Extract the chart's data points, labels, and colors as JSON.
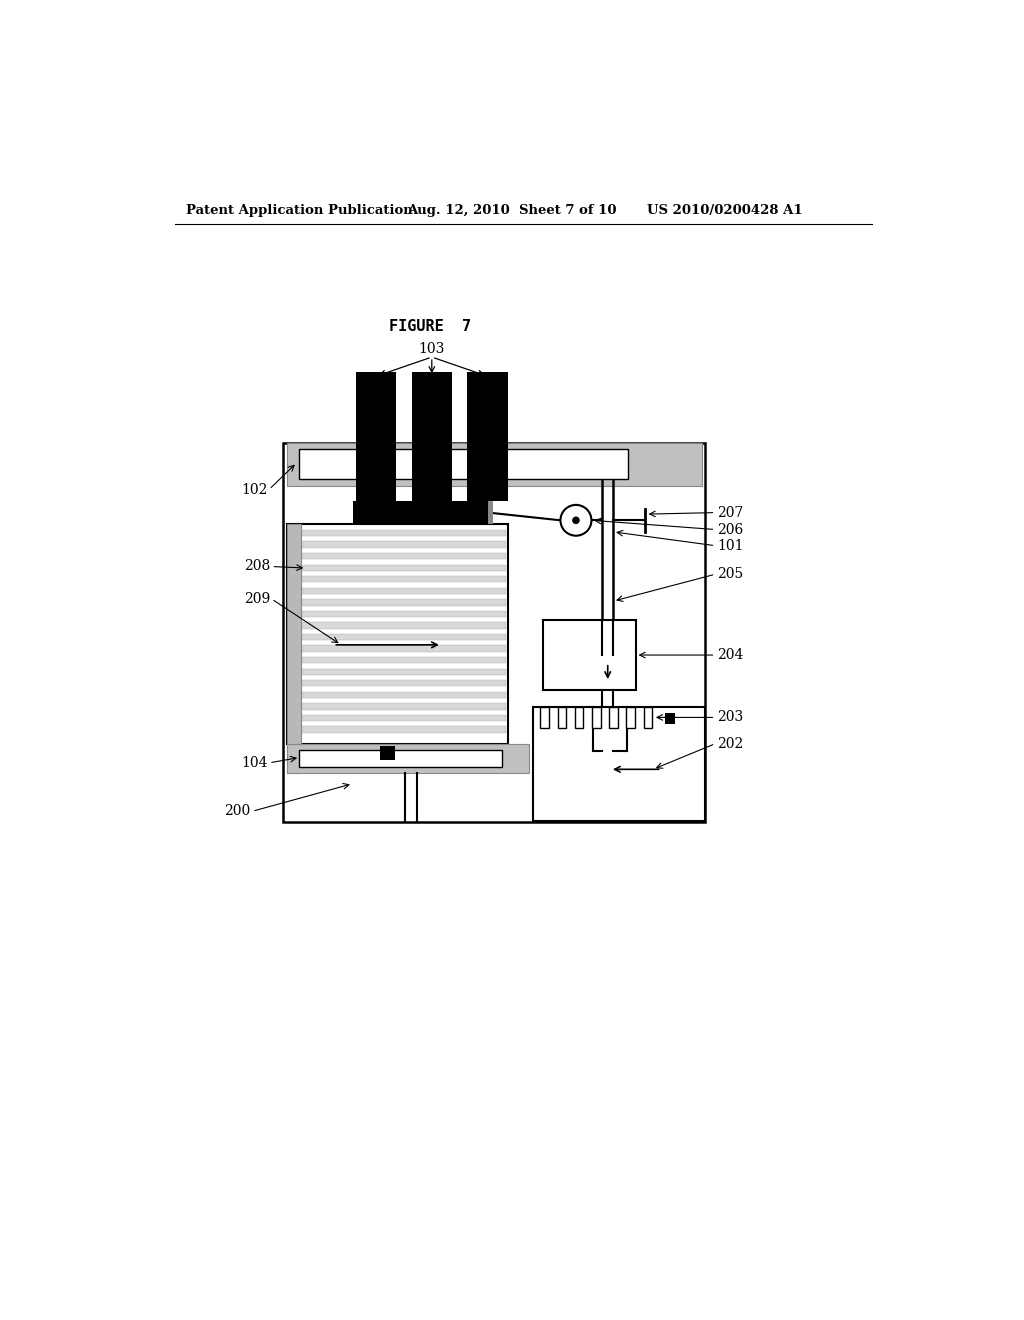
{
  "bg_color": "#ffffff",
  "header_text1": "Patent Application Publication",
  "header_text2": "Aug. 12, 2010  Sheet 7 of 10",
  "header_text3": "US 2010/0200428 A1",
  "figure_label": "FIGURE  7"
}
